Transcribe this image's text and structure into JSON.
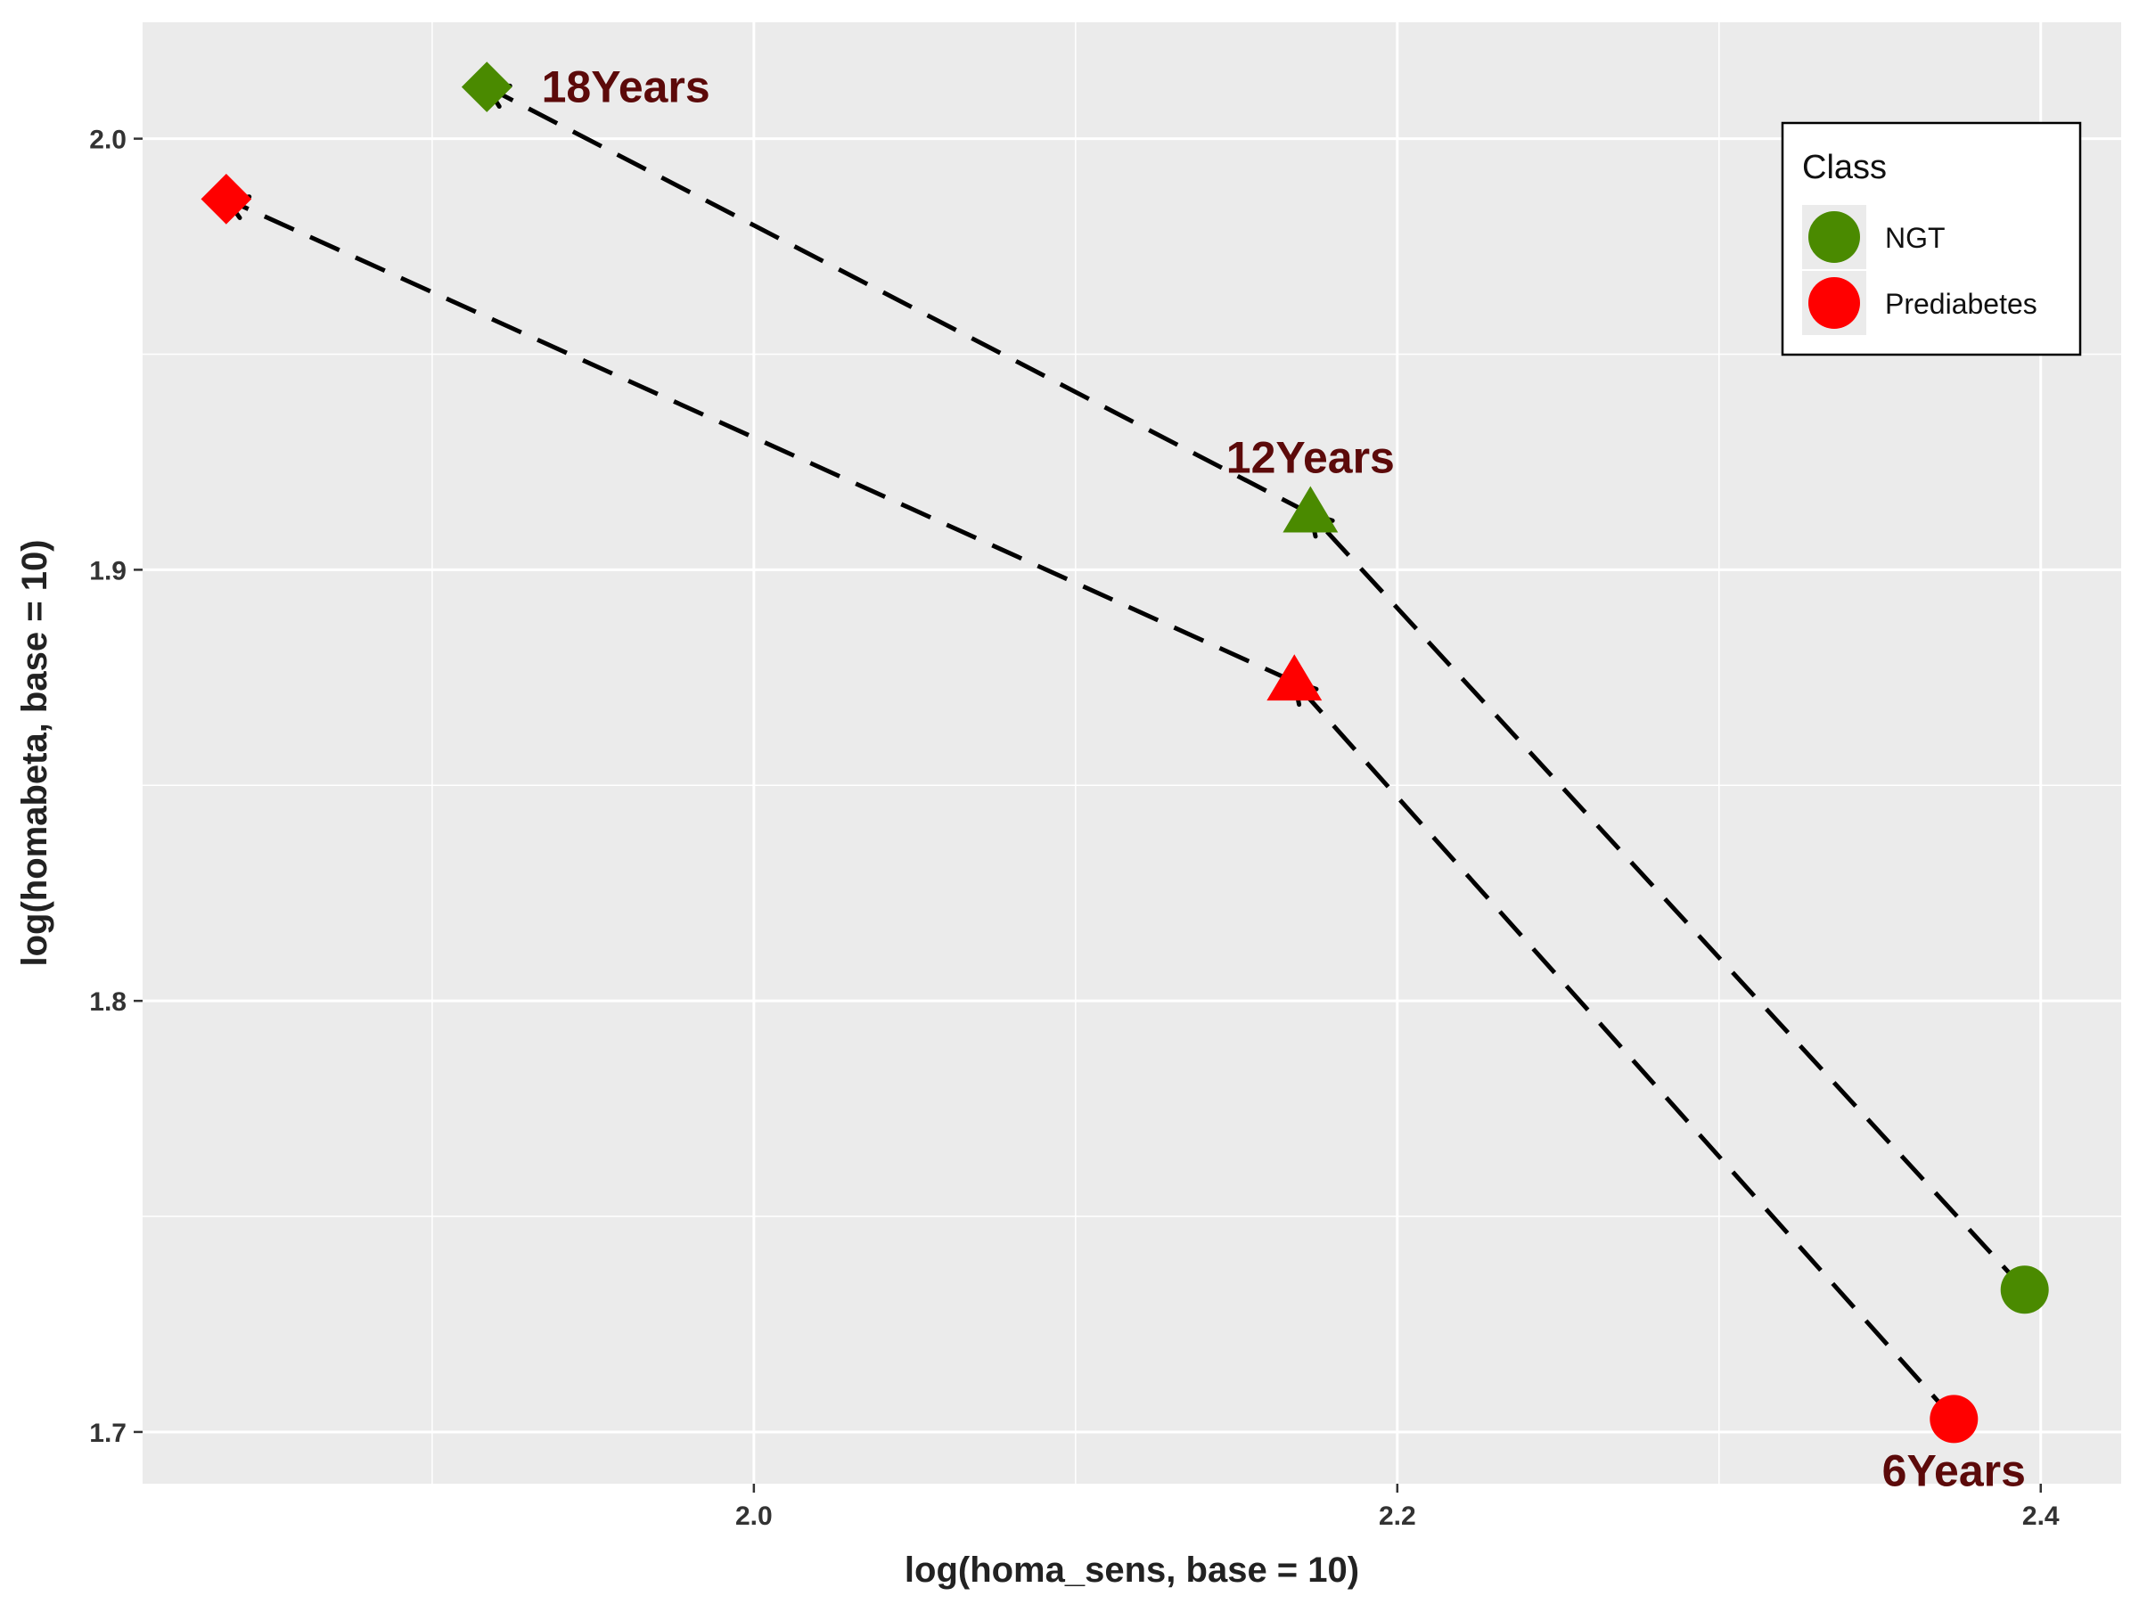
{
  "chart_data": {
    "type": "scatter",
    "xlabel": "log(homa_sens, base = 10)",
    "ylabel": "log(homabeta, base = 10)",
    "xlim": [
      1.81,
      2.425
    ],
    "ylim": [
      1.688,
      2.027
    ],
    "x_ticks": [
      2.0,
      2.2,
      2.4
    ],
    "x_tick_labels": [
      "2.0",
      "2.2",
      "2.4"
    ],
    "y_ticks": [
      1.7,
      1.8,
      1.9,
      2.0
    ],
    "y_tick_labels": [
      "1.7",
      "1.8",
      "1.9",
      "2.0"
    ],
    "grid": true,
    "legend": {
      "title": "Class",
      "position": "top-right",
      "entries": [
        {
          "label": "NGT",
          "color": "#4a8a00"
        },
        {
          "label": "Prediabetes",
          "color": "#ff0000"
        }
      ]
    },
    "series": [
      {
        "name": "NGT",
        "color": "#4a8a00",
        "points": [
          {
            "x": 2.395,
            "y": 1.733,
            "shape": "circle"
          },
          {
            "x": 2.173,
            "y": 1.913,
            "shape": "triangle"
          },
          {
            "x": 1.917,
            "y": 2.012,
            "shape": "diamond"
          }
        ]
      },
      {
        "name": "Prediabetes",
        "color": "#ff0000",
        "points": [
          {
            "x": 2.373,
            "y": 1.703,
            "shape": "circle"
          },
          {
            "x": 2.168,
            "y": 1.874,
            "shape": "triangle"
          },
          {
            "x": 1.836,
            "y": 1.986,
            "shape": "diamond"
          }
        ]
      }
    ],
    "annotations": [
      {
        "text": "18Years",
        "x": 1.934,
        "y": 2.012
      },
      {
        "text": "12Years",
        "x": 2.173,
        "y": 1.926
      },
      {
        "text": "6Years",
        "x": 2.373,
        "y": 1.691
      }
    ]
  }
}
